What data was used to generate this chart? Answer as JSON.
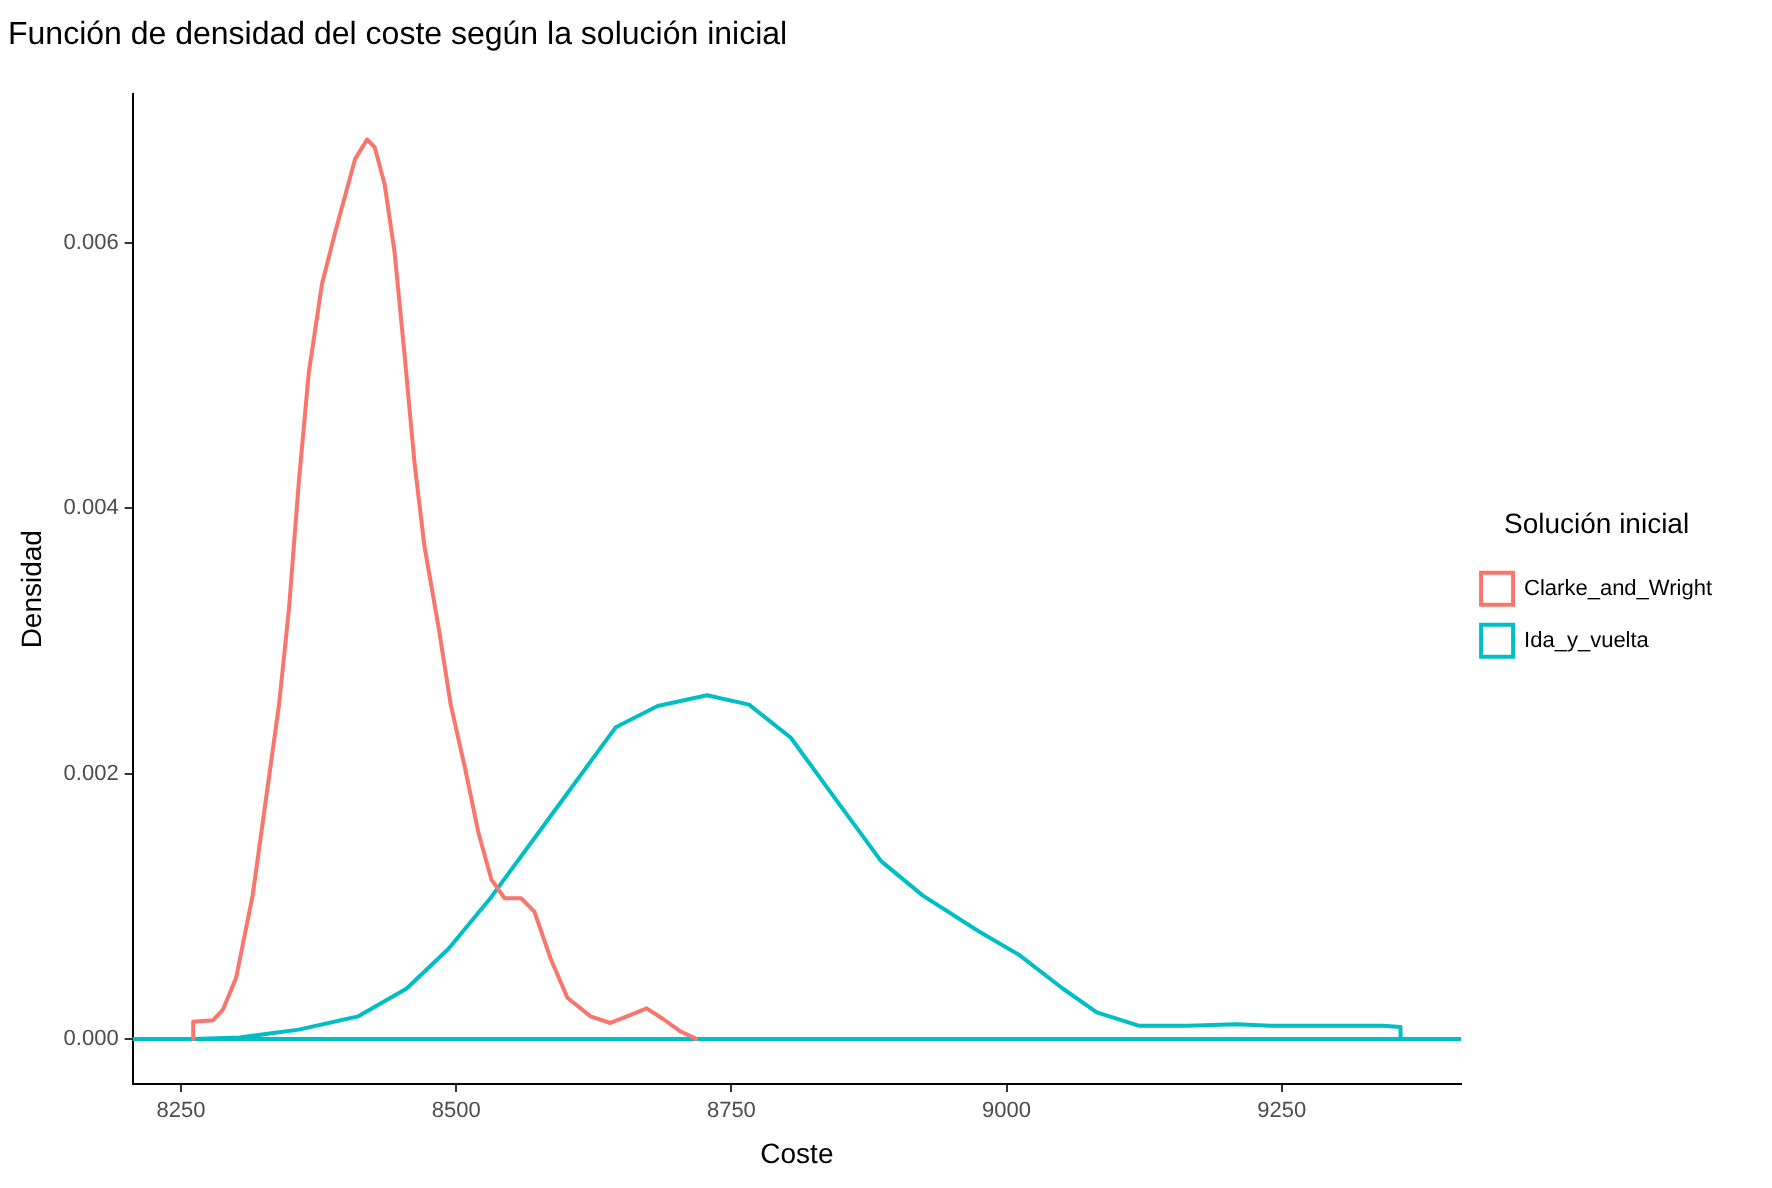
{
  "chart_data": {
    "type": "line",
    "title": "Función de densidad del coste según la solución inicial",
    "xlabel": "Coste",
    "ylabel": "Densidad",
    "legend_title": "Solución inicial",
    "legend": "right",
    "grid": false,
    "marker": "none",
    "line_style": "solid",
    "ref_lines": [
      {
        "axis": "y",
        "value": 0,
        "color": "#00bfc4"
      }
    ],
    "xlim": [
      8206,
      9413
    ],
    "xticks": [
      8250,
      8500,
      8750,
      9000,
      9250
    ],
    "ylim": [
      -0.00034,
      0.00712
    ],
    "yticks": [
      {
        "value": 0,
        "label": "0.000"
      },
      {
        "value": 0.002,
        "label": "0.002"
      },
      {
        "value": 0.004,
        "label": "0.004"
      },
      {
        "value": 0.006,
        "label": "0.006"
      }
    ],
    "series": [
      {
        "name": "Clarke_and_Wright",
        "color": "#f8766d",
        "x": [
          8261,
          8261,
          8279,
          8288,
          8300,
          8315,
          8327,
          8339,
          8348,
          8357,
          8366,
          8378,
          8390,
          8408,
          8419,
          8426,
          8435,
          8444,
          8453,
          8462,
          8471,
          8484,
          8495,
          8508,
          8520,
          8532,
          8544,
          8559,
          8571,
          8586,
          8601,
          8622,
          8640,
          8658,
          8673,
          8688,
          8703,
          8718
        ],
        "values": [
          0,
          0.00013,
          0.00014,
          0.00022,
          0.00046,
          0.00108,
          0.0018,
          0.00252,
          0.00324,
          0.0042,
          0.00502,
          0.00569,
          0.00608,
          0.00663,
          0.00678,
          0.00672,
          0.00644,
          0.00593,
          0.00516,
          0.00435,
          0.00372,
          0.0031,
          0.00252,
          0.00204,
          0.00156,
          0.0012,
          0.00106,
          0.00106,
          0.00096,
          0.0006,
          0.00031,
          0.00017,
          0.00012,
          0.00018,
          0.00023,
          0.00015,
          6e-05,
          0
        ]
      },
      {
        "name": "Ida_y_vuelta",
        "color": "#00bfc4",
        "x": [
          8261,
          8303,
          8357,
          8411,
          8455,
          8493,
          8531,
          8569,
          8607,
          8645,
          8683,
          8728,
          8766,
          8804,
          8848,
          8886,
          8924,
          8975,
          9012,
          9051,
          9082,
          9120,
          9164,
          9209,
          9240,
          9342,
          9358,
          9358
        ],
        "values": [
          0,
          1e-05,
          7e-05,
          0.00017,
          0.00038,
          0.00068,
          0.00106,
          0.00149,
          0.00192,
          0.00235,
          0.00251,
          0.00259,
          0.00252,
          0.00227,
          0.00177,
          0.00134,
          0.00108,
          0.00081,
          0.00063,
          0.00038,
          0.0002,
          0.0001,
          0.0001,
          0.00011,
          0.0001,
          0.0001,
          9e-05,
          0
        ]
      }
    ]
  }
}
